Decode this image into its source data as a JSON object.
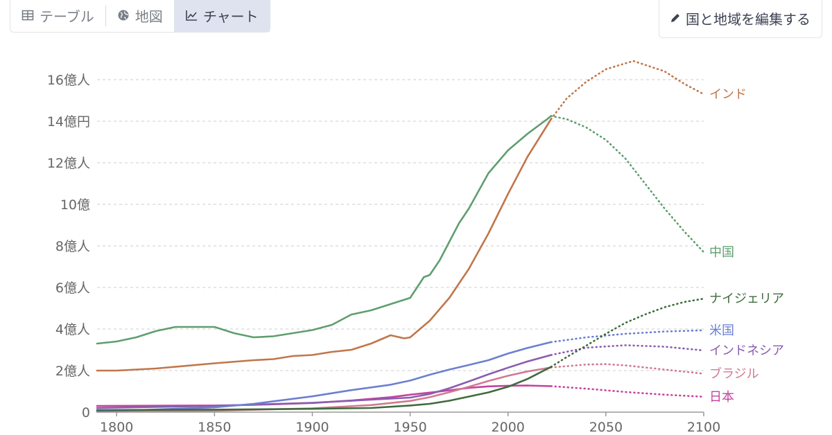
{
  "tabs": [
    {
      "label": "テーブル",
      "icon": "table-icon",
      "active": false
    },
    {
      "label": "地図",
      "icon": "globe-icon",
      "active": false
    },
    {
      "label": "チャート",
      "icon": "line-chart-icon",
      "active": true
    }
  ],
  "edit_button": {
    "label": "国と地域を編集する",
    "icon": "pencil-icon"
  },
  "colors": {
    "accent_tab_bg": "#dfe3ef",
    "grid": "#d8d8d8"
  },
  "chart_data": {
    "type": "line",
    "title": "",
    "xlabel": "",
    "ylabel": "",
    "xlim": [
      1790,
      2100
    ],
    "ylim": [
      0,
      1.7
    ],
    "grid": true,
    "legend": "inline labels at line ends (right)",
    "x_ticks": [
      1800,
      1850,
      1900,
      1950,
      2000,
      2050,
      2100
    ],
    "x_tick_labels": [
      "1800",
      "1850",
      "1900",
      "1950",
      "2000",
      "2050",
      "2100"
    ],
    "y_ticks": [
      0,
      0.2,
      0.4,
      0.6,
      0.8,
      1.0,
      1.2,
      1.4,
      1.6
    ],
    "y_tick_labels": [
      "0",
      "2億人",
      "4億人",
      "6億人",
      "8億人",
      "10億",
      "12億人",
      "14億円",
      "16億人"
    ],
    "projection_start": 2022,
    "series": [
      {
        "name": "インド",
        "color": "#c0764a",
        "points": [
          [
            1790,
            0.2
          ],
          [
            1800,
            0.2
          ],
          [
            1820,
            0.21
          ],
          [
            1850,
            0.235
          ],
          [
            1870,
            0.25
          ],
          [
            1880,
            0.255
          ],
          [
            1890,
            0.27
          ],
          [
            1900,
            0.275
          ],
          [
            1910,
            0.29
          ],
          [
            1920,
            0.3
          ],
          [
            1930,
            0.33
          ],
          [
            1940,
            0.37
          ],
          [
            1947,
            0.355
          ],
          [
            1950,
            0.36
          ],
          [
            1960,
            0.44
          ],
          [
            1970,
            0.55
          ],
          [
            1980,
            0.69
          ],
          [
            1990,
            0.86
          ],
          [
            2000,
            1.05
          ],
          [
            2010,
            1.23
          ],
          [
            2022,
            1.41
          ]
        ],
        "projection": [
          [
            2022,
            1.41
          ],
          [
            2030,
            1.51
          ],
          [
            2040,
            1.59
          ],
          [
            2050,
            1.65
          ],
          [
            2064,
            1.69
          ],
          [
            2080,
            1.64
          ],
          [
            2090,
            1.58
          ],
          [
            2100,
            1.53
          ]
        ]
      },
      {
        "name": "中国",
        "color": "#5e9e6e",
        "points": [
          [
            1790,
            0.33
          ],
          [
            1800,
            0.34
          ],
          [
            1810,
            0.36
          ],
          [
            1820,
            0.39
          ],
          [
            1830,
            0.41
          ],
          [
            1840,
            0.41
          ],
          [
            1850,
            0.41
          ],
          [
            1860,
            0.38
          ],
          [
            1870,
            0.36
          ],
          [
            1880,
            0.365
          ],
          [
            1900,
            0.395
          ],
          [
            1910,
            0.42
          ],
          [
            1920,
            0.47
          ],
          [
            1930,
            0.49
          ],
          [
            1940,
            0.52
          ],
          [
            1950,
            0.55
          ],
          [
            1957,
            0.65
          ],
          [
            1960,
            0.66
          ],
          [
            1965,
            0.73
          ],
          [
            1970,
            0.82
          ],
          [
            1975,
            0.91
          ],
          [
            1980,
            0.98
          ],
          [
            1990,
            1.15
          ],
          [
            2000,
            1.26
          ],
          [
            2010,
            1.34
          ],
          [
            2020,
            1.41
          ],
          [
            2022,
            1.425
          ]
        ],
        "projection": [
          [
            2022,
            1.425
          ],
          [
            2030,
            1.41
          ],
          [
            2040,
            1.37
          ],
          [
            2050,
            1.31
          ],
          [
            2060,
            1.22
          ],
          [
            2070,
            1.1
          ],
          [
            2080,
            0.98
          ],
          [
            2090,
            0.87
          ],
          [
            2100,
            0.77
          ]
        ]
      },
      {
        "name": "ナイジェリア",
        "color": "#3f6b3c",
        "points": [
          [
            1790,
            0.01
          ],
          [
            1850,
            0.012
          ],
          [
            1900,
            0.016
          ],
          [
            1930,
            0.02
          ],
          [
            1950,
            0.032
          ],
          [
            1960,
            0.04
          ],
          [
            1970,
            0.055
          ],
          [
            1980,
            0.075
          ],
          [
            1990,
            0.095
          ],
          [
            2000,
            0.122
          ],
          [
            2010,
            0.16
          ],
          [
            2022,
            0.218
          ]
        ],
        "projection": [
          [
            2022,
            0.218
          ],
          [
            2030,
            0.265
          ],
          [
            2040,
            0.32
          ],
          [
            2050,
            0.377
          ],
          [
            2060,
            0.43
          ],
          [
            2070,
            0.47
          ],
          [
            2080,
            0.505
          ],
          [
            2090,
            0.53
          ],
          [
            2100,
            0.546
          ]
        ]
      },
      {
        "name": "米国",
        "color": "#6b7fd0",
        "points": [
          [
            1790,
            0.004
          ],
          [
            1800,
            0.006
          ],
          [
            1850,
            0.023
          ],
          [
            1870,
            0.04
          ],
          [
            1900,
            0.076
          ],
          [
            1920,
            0.106
          ],
          [
            1940,
            0.132
          ],
          [
            1950,
            0.152
          ],
          [
            1960,
            0.18
          ],
          [
            1970,
            0.205
          ],
          [
            1980,
            0.227
          ],
          [
            1990,
            0.25
          ],
          [
            2000,
            0.282
          ],
          [
            2010,
            0.309
          ],
          [
            2022,
            0.337
          ]
        ],
        "projection": [
          [
            2022,
            0.337
          ],
          [
            2040,
            0.36
          ],
          [
            2060,
            0.377
          ],
          [
            2080,
            0.388
          ],
          [
            2100,
            0.394
          ]
        ]
      },
      {
        "name": "インドネシア",
        "color": "#8a5cb0",
        "points": [
          [
            1790,
            0.02
          ],
          [
            1850,
            0.03
          ],
          [
            1900,
            0.045
          ],
          [
            1930,
            0.06
          ],
          [
            1950,
            0.07
          ],
          [
            1960,
            0.087
          ],
          [
            1970,
            0.115
          ],
          [
            1980,
            0.148
          ],
          [
            1990,
            0.182
          ],
          [
            2000,
            0.214
          ],
          [
            2010,
            0.244
          ],
          [
            2022,
            0.275
          ]
        ],
        "projection": [
          [
            2022,
            0.275
          ],
          [
            2040,
            0.31
          ],
          [
            2060,
            0.322
          ],
          [
            2080,
            0.315
          ],
          [
            2100,
            0.297
          ]
        ]
      },
      {
        "name": "ブラジル",
        "color": "#d07a90",
        "points": [
          [
            1790,
            0.003
          ],
          [
            1850,
            0.007
          ],
          [
            1900,
            0.018
          ],
          [
            1930,
            0.034
          ],
          [
            1950,
            0.054
          ],
          [
            1960,
            0.072
          ],
          [
            1970,
            0.096
          ],
          [
            1980,
            0.122
          ],
          [
            1990,
            0.15
          ],
          [
            2000,
            0.175
          ],
          [
            2010,
            0.196
          ],
          [
            2022,
            0.215
          ]
        ],
        "projection": [
          [
            2022,
            0.215
          ],
          [
            2040,
            0.229
          ],
          [
            2050,
            0.231
          ],
          [
            2060,
            0.225
          ],
          [
            2080,
            0.205
          ],
          [
            2100,
            0.185
          ]
        ]
      },
      {
        "name": "日本",
        "color": "#c4439e",
        "points": [
          [
            1790,
            0.03
          ],
          [
            1850,
            0.032
          ],
          [
            1870,
            0.035
          ],
          [
            1900,
            0.044
          ],
          [
            1920,
            0.056
          ],
          [
            1940,
            0.072
          ],
          [
            1950,
            0.084
          ],
          [
            1960,
            0.094
          ],
          [
            1970,
            0.105
          ],
          [
            1980,
            0.117
          ],
          [
            1990,
            0.124
          ],
          [
            2000,
            0.127
          ],
          [
            2010,
            0.128
          ],
          [
            2022,
            0.125
          ]
        ],
        "projection": [
          [
            2022,
            0.125
          ],
          [
            2040,
            0.113
          ],
          [
            2060,
            0.097
          ],
          [
            2080,
            0.084
          ],
          [
            2100,
            0.074
          ]
        ]
      }
    ]
  }
}
